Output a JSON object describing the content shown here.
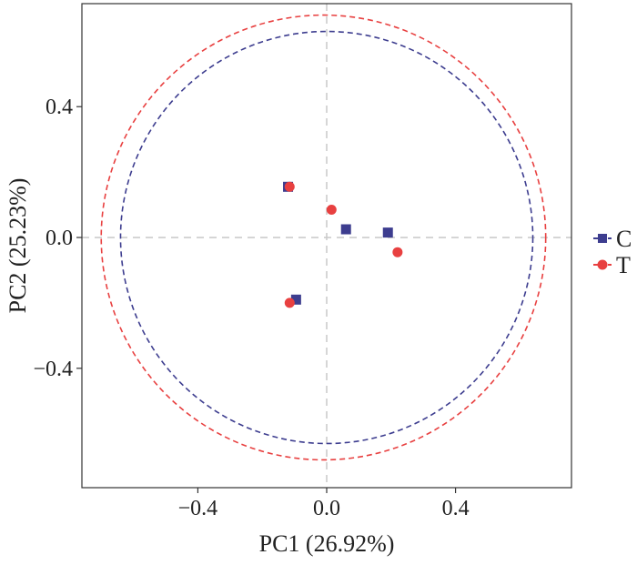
{
  "chart_data": {
    "type": "scatter",
    "xlabel": "PC1 (26.92%)",
    "ylabel": "PC2 (25.23%)",
    "xlim": [
      -0.76,
      0.76
    ],
    "ylim": [
      -0.765,
      0.715
    ],
    "x_ticks": [
      -0.4,
      0.0,
      0.4
    ],
    "x_tick_labels": [
      "−0.4",
      "0.0",
      "0.4"
    ],
    "y_ticks": [
      -0.4,
      0.0,
      0.4
    ],
    "y_tick_labels": [
      "−0.4",
      "0.0",
      "0.4"
    ],
    "reference_lines": {
      "x": 0,
      "y": 0,
      "style": "dashed",
      "color": "#cccccc"
    },
    "grid": false,
    "legend_position": "right",
    "series": [
      {
        "name": "C",
        "marker": "square",
        "color": "#3d3d8f",
        "points": [
          {
            "x": -0.12,
            "y": 0.155
          },
          {
            "x": -0.095,
            "y": -0.19
          },
          {
            "x": 0.06,
            "y": 0.025
          },
          {
            "x": 0.19,
            "y": 0.015
          }
        ],
        "ellipse": {
          "cx": 0.0,
          "cy": 0.0,
          "rx": 0.64,
          "ry": 0.63
        }
      },
      {
        "name": "T",
        "marker": "circle",
        "color": "#e84040",
        "points": [
          {
            "x": -0.115,
            "y": 0.155
          },
          {
            "x": -0.115,
            "y": -0.2
          },
          {
            "x": 0.015,
            "y": 0.085
          },
          {
            "x": 0.22,
            "y": -0.045
          }
        ],
        "ellipse": {
          "cx": -0.01,
          "cy": 0.0,
          "rx": 0.69,
          "ry": 0.68
        }
      }
    ]
  }
}
